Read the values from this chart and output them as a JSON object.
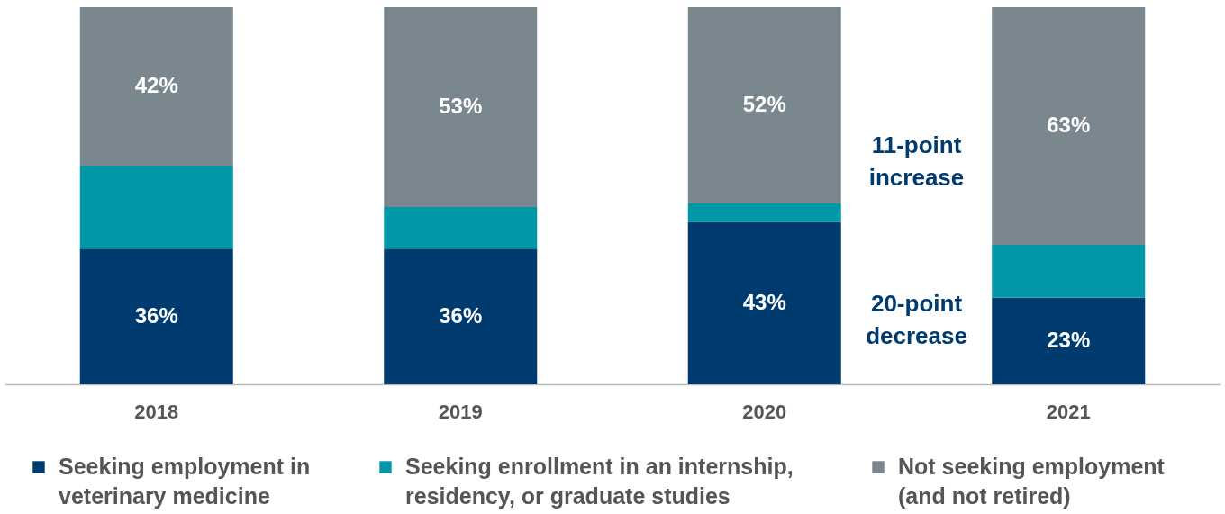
{
  "chart_data": {
    "type": "bar",
    "stacked": true,
    "categories": [
      "2018",
      "2019",
      "2020",
      "2021"
    ],
    "ylim": [
      0,
      100
    ],
    "series": [
      {
        "name": "Seeking employment in veterinary medicine",
        "color": "#003b6f",
        "values": [
          36,
          36,
          43,
          23
        ],
        "value_labels": [
          "36%",
          "36%",
          "43%",
          "23%"
        ]
      },
      {
        "name": "Seeking enrollment in an internship, residency, or graduate studies",
        "color": "#0097a7",
        "values": [
          22,
          11,
          5,
          14
        ],
        "value_labels": [
          null,
          null,
          null,
          null
        ]
      },
      {
        "name": "Not seeking employment (and not retired)",
        "color": "#7b878e",
        "values": [
          42,
          53,
          52,
          63
        ],
        "value_labels": [
          "42%",
          "53%",
          "52%",
          "63%"
        ]
      }
    ],
    "annotations": [
      "11-point increase",
      "20-point decrease"
    ],
    "legend": "bottom",
    "grid": false
  }
}
